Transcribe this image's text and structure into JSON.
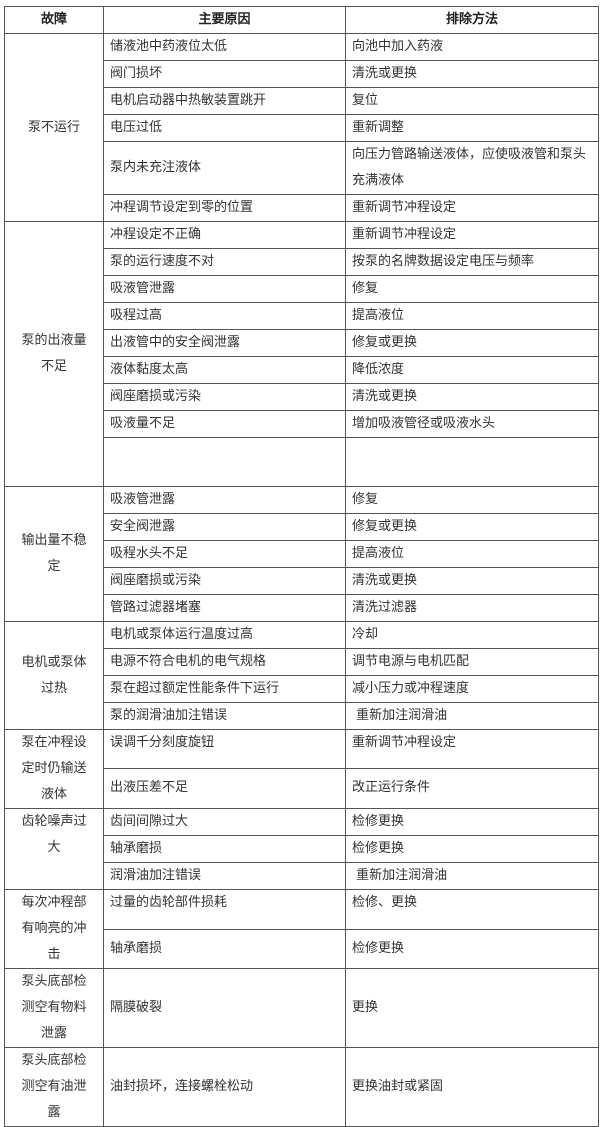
{
  "header": {
    "fault": "故障",
    "cause": "主要原因",
    "remedy": "排除方法"
  },
  "groups": [
    {
      "fault": "泵不运行",
      "rows": [
        {
          "cause": "储液池中药液位太低",
          "remedy": "向池中加入药液"
        },
        {
          "cause": "阀门损坏",
          "remedy": "清洗或更换"
        },
        {
          "cause": "电机启动器中热敏装置跳开",
          "remedy": "复位"
        },
        {
          "cause": "电压过低",
          "remedy": "重新调整"
        },
        {
          "cause": "泵内未充注液体",
          "remedy": "向压力管路输送液体，应使吸液管和泵头充满液体"
        },
        {
          "cause": "冲程调节设定到零的位置",
          "remedy": "重新调节冲程设定"
        }
      ]
    },
    {
      "fault": "泵的出液量不足",
      "rows": [
        {
          "cause": "冲程设定不正确",
          "remedy": "重新调节冲程设定"
        },
        {
          "cause": "泵的运行速度不对",
          "remedy": "按泵的名牌数据设定电压与频率"
        },
        {
          "cause": "吸液管泄露",
          "remedy": "修复"
        },
        {
          "cause": "吸程过高",
          "remedy": "提高液位"
        },
        {
          "cause": "出液管中的安全阀泄露",
          "remedy": "修复或更换"
        },
        {
          "cause": "液体黏度太高",
          "remedy": "降低浓度"
        },
        {
          "cause": "阀座磨损或污染",
          "remedy": "清洗或更换"
        },
        {
          "cause": "吸液量不足",
          "remedy": "增加吸液管径或吸液水头"
        },
        {
          "cause": "",
          "remedy": ""
        }
      ]
    },
    {
      "fault": "输出量不稳定",
      "rows": [
        {
          "cause": "吸液管泄露",
          "remedy": "修复"
        },
        {
          "cause": "安全阀泄露",
          "remedy": "修复或更换"
        },
        {
          "cause": "吸程水头不足",
          "remedy": "提高液位"
        },
        {
          "cause": "阀座磨损或污染",
          "remedy": "清洗或更换"
        },
        {
          "cause": "管路过滤器堵塞",
          "remedy": "清洗过滤器"
        }
      ]
    },
    {
      "fault": "电机或泵体过热",
      "rows": [
        {
          "cause": "电机或泵体运行温度过高",
          "remedy": "冷却"
        },
        {
          "cause": "电源不符合电机的电气规格",
          "remedy": "调节电源与电机匹配"
        },
        {
          "cause": "泵在超过额定性能条件下运行",
          "remedy": "减小压力或冲程速度"
        },
        {
          "cause": "泵的润滑油加注错误",
          "remedy": " 重新加注润滑油"
        }
      ]
    },
    {
      "fault": "泵在冲程设定时仍输送液体",
      "rows": [
        {
          "cause": "误调千分刻度旋钮",
          "remedy": "重新调节冲程设定"
        },
        {
          "cause": "出液压差不足",
          "remedy": "改正运行条件"
        }
      ]
    },
    {
      "fault": "齿轮噪声过大",
      "rows": [
        {
          "cause": "齿间间隙过大",
          "remedy": "检修更换"
        },
        {
          "cause": "轴承磨损",
          "remedy": "检修更换"
        },
        {
          "cause": "润滑油加注错误",
          "remedy": " 重新加注润滑油"
        }
      ]
    },
    {
      "fault": "每次冲程部有响亮的冲击",
      "rows": [
        {
          "cause": "过量的齿轮部件损耗",
          "remedy": "检修、更换"
        },
        {
          "cause": "轴承磨损",
          "remedy": "检修更换"
        }
      ]
    },
    {
      "fault": "泵头底部检测空有物料泄露",
      "rows": [
        {
          "cause": "隔膜破裂",
          "remedy": "更换"
        }
      ]
    },
    {
      "fault": "泵头底部检测空有油泄露",
      "rows": [
        {
          "cause": "油封损坏，连接螺栓松动",
          "remedy": "更换油封或紧固"
        }
      ]
    }
  ]
}
